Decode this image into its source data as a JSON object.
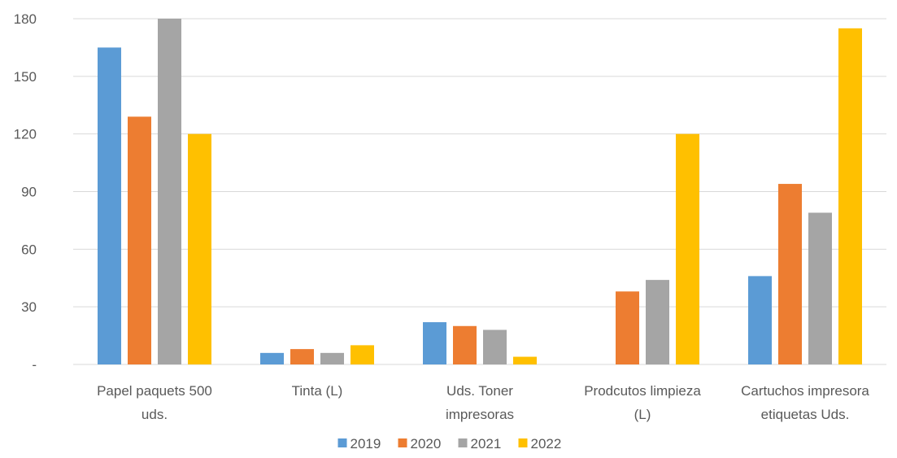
{
  "chart_data": {
    "type": "bar",
    "categories": [
      [
        "Papel paquets 500",
        "uds."
      ],
      [
        "Tinta (L)"
      ],
      [
        "Uds. Toner",
        "impresoras"
      ],
      [
        "Prodcutos limpieza",
        "(L)"
      ],
      [
        "Cartuchos impresora",
        "etiquetas Uds."
      ]
    ],
    "series": [
      {
        "name": "2019",
        "color": "#5b9bd5",
        "values": [
          165,
          6,
          22,
          0,
          46
        ]
      },
      {
        "name": "2020",
        "color": "#ed7d31",
        "values": [
          129,
          8,
          20,
          38,
          94
        ]
      },
      {
        "name": "2021",
        "color": "#a5a5a5",
        "values": [
          180,
          6,
          18,
          44,
          79
        ]
      },
      {
        "name": "2022",
        "color": "#ffc000",
        "values": [
          120,
          10,
          4,
          120,
          175
        ]
      }
    ],
    "ylim": [
      0,
      180
    ],
    "yticks": [
      0,
      30,
      60,
      90,
      120,
      150,
      180
    ],
    "ytick_labels": [
      "-",
      "30",
      "60",
      "90",
      "120",
      "150",
      "180"
    ],
    "grid": true,
    "legend": "bottom"
  }
}
